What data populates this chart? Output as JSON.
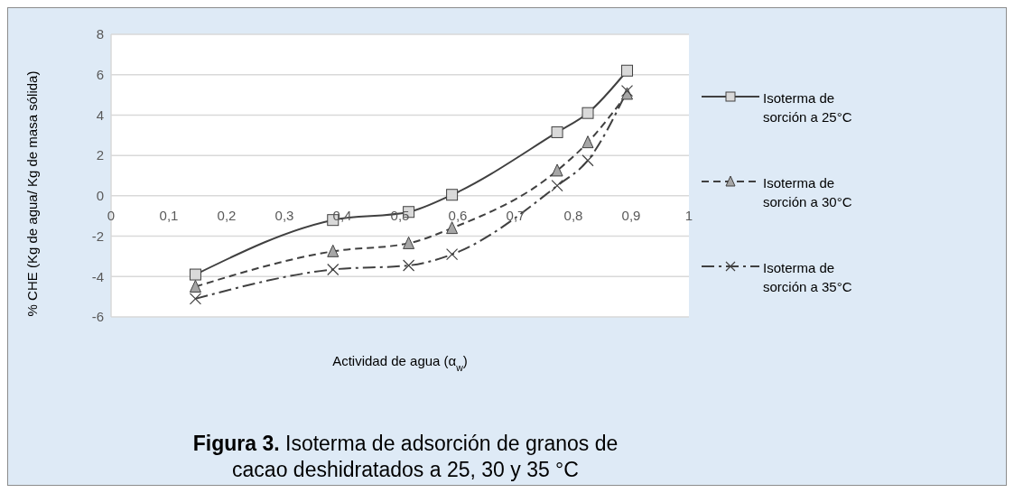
{
  "chart_data": {
    "type": "line",
    "title": "Figura 3. Isoterma de adsorción de granos de cacao deshidratados a 25, 30 y 35 °C",
    "xlabel": "Actividad de agua (α$_{w}$)",
    "ylabel": "% CHE (Kg de agua/ Kg de masa sólida)",
    "x": [
      0.146,
      0.384,
      0.515,
      0.59,
      0.772,
      0.825,
      0.893
    ],
    "series": [
      {
        "name": "Isoterma de sorción a 25°C",
        "color": "#404040",
        "marker": "square",
        "line_style": "solid",
        "values": [
          -3.9,
          -1.2,
          -0.8,
          0.05,
          3.15,
          4.1,
          6.2
        ]
      },
      {
        "name": "Isoterma de sorción a 30°C",
        "color": "#404040",
        "marker": "triangle",
        "line_style": "dashed",
        "values": [
          -4.5,
          -2.75,
          -2.35,
          -1.6,
          1.25,
          2.65,
          5.05
        ]
      },
      {
        "name": "Isoterma de sorción a 35°C",
        "color": "#404040",
        "marker": "cross",
        "line_style": "dashdot",
        "values": [
          -5.1,
          -3.65,
          -3.45,
          -2.9,
          0.5,
          1.75,
          5.2
        ]
      }
    ],
    "xlim": [
      0,
      1
    ],
    "xticks": [
      0,
      {
        "value": 0.1,
        "label": "0,1"
      },
      {
        "value": 0.2,
        "label": "0,2"
      },
      {
        "value": 0.3,
        "label": "0,3"
      },
      {
        "value": 0.4,
        "label": "0,4"
      },
      {
        "value": 0.5,
        "label": "0,5"
      },
      {
        "value": 0.6,
        "label": "0,6"
      },
      {
        "value": 0.7,
        "label": "0,7"
      },
      {
        "value": 0.8,
        "label": "0,8"
      },
      {
        "value": 0.9,
        "label": "0,9"
      },
      1
    ],
    "ylim": [
      -6,
      8
    ],
    "yticks": [
      -6,
      -4,
      -2,
      0,
      2,
      4,
      6,
      8
    ],
    "grid": "y",
    "legend": "right"
  }
}
